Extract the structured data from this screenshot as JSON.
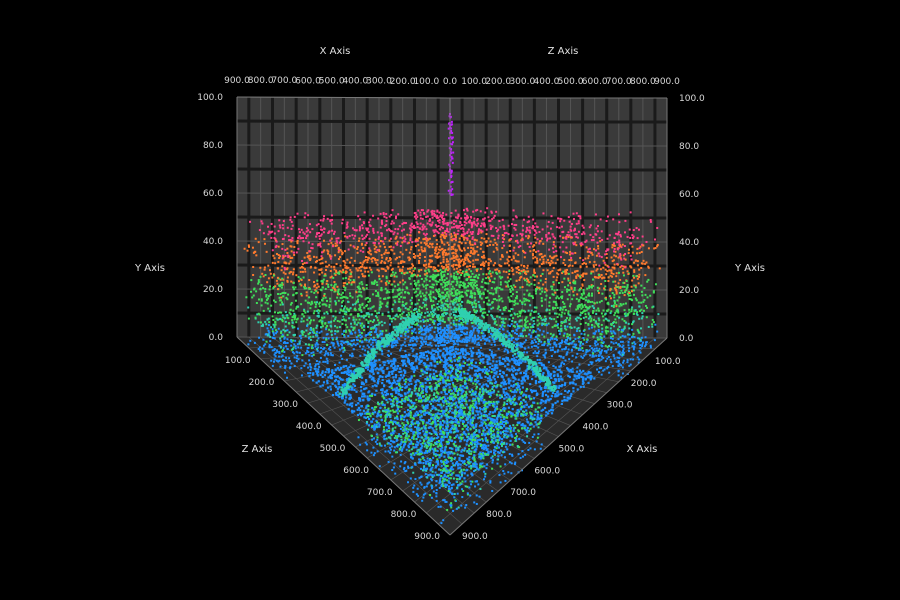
{
  "chart_data": {
    "type": "scatter",
    "title": "",
    "axes": {
      "x": {
        "title": "X Axis",
        "min": 0,
        "max": 900,
        "ticks": [
          "0.0",
          "100.0",
          "200.0",
          "300.0",
          "400.0",
          "500.0",
          "600.0",
          "700.0",
          "800.0",
          "900.0"
        ],
        "top_ticks": [
          "100.0",
          "200.0",
          "300.0",
          "400.0",
          "500.0",
          "600.0",
          "700.0",
          "800.0",
          "900.0"
        ],
        "bottom_ticks": [
          "100.0",
          "200.0",
          "300.0",
          "400.0",
          "500.0",
          "600.0",
          "700.0",
          "800.0",
          "900.0"
        ]
      },
      "y": {
        "title": "Y Axis",
        "min": 0,
        "max": 100,
        "ticks": [
          "0.0",
          "20.0",
          "40.0",
          "60.0",
          "80.0",
          "100.0"
        ]
      },
      "z": {
        "title": "Z Axis",
        "min": 0,
        "max": 900,
        "ticks": [
          "0.0",
          "100.0",
          "200.0",
          "300.0",
          "400.0",
          "500.0",
          "600.0",
          "700.0",
          "800.0",
          "900.0"
        ],
        "top_ticks": [
          "100.0",
          "200.0",
          "300.0",
          "400.0",
          "500.0",
          "600.0",
          "700.0",
          "800.0",
          "900.0"
        ],
        "bottom_ticks": [
          "100.0",
          "200.0",
          "300.0",
          "400.0",
          "500.0",
          "600.0",
          "700.0",
          "800.0",
          "900.0"
        ]
      }
    },
    "grid": true,
    "background": "#000000",
    "wall_color": "#3a3a3a",
    "floor_color": "#2a2a2a",
    "color_scale": [
      "#1e90ff",
      "#2fd0b0",
      "#3fdf5a",
      "#ff7a2e",
      "#ff3e8a",
      "#c020ff"
    ],
    "point_cloud_description_only": true
  }
}
